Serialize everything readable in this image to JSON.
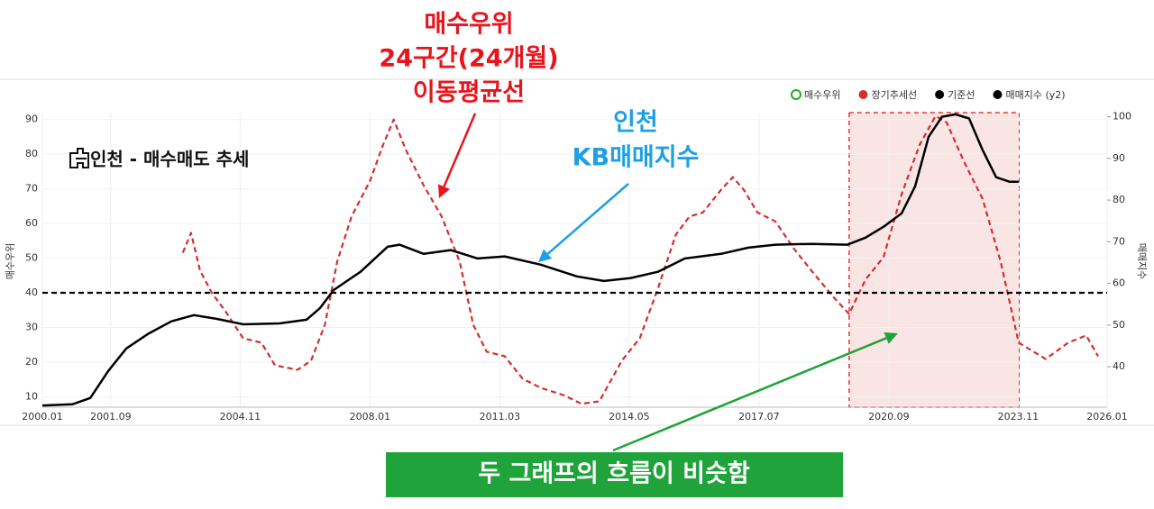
{
  "chart_data": {
    "type": "line",
    "title": "인천 - 매수매도 추세",
    "ylabel": "매수우위",
    "y2label": "매매지수",
    "xlim": [
      2000.0,
      2026.0
    ],
    "xticks": [
      {
        "value": 2000.0,
        "label": "2000.01"
      },
      {
        "value": 2001.67,
        "label": "2001.09"
      },
      {
        "value": 2004.83,
        "label": "2004.11"
      },
      {
        "value": 2008.0,
        "label": "2008.01"
      },
      {
        "value": 2011.17,
        "label": "2011.03"
      },
      {
        "value": 2014.33,
        "label": "2014.05"
      },
      {
        "value": 2017.5,
        "label": "2017.07"
      },
      {
        "value": 2020.67,
        "label": "2020.09"
      },
      {
        "value": 2023.83,
        "label": "2023.11"
      },
      {
        "value": 2026.0,
        "label": "2026.01"
      }
    ],
    "ylim": [
      7,
      92
    ],
    "yticks": [
      10,
      20,
      30,
      40,
      50,
      60,
      70,
      80,
      90
    ],
    "y2lim": [
      30.3,
      101
    ],
    "y2ticks": [
      40,
      50,
      60,
      70,
      80,
      90,
      100
    ],
    "grid": true,
    "legend": "top-right",
    "highlight_range": [
      2019.7,
      2023.85
    ],
    "highlight_color": "#f4c6c6",
    "series": [
      {
        "name": "매수우위",
        "color": "#22aa22",
        "marker": "ring",
        "x": [],
        "values": []
      },
      {
        "name": "장기추세선",
        "color": "#d32f2f",
        "marker": "dot",
        "dash": true,
        "x": [
          2003.43,
          2003.63,
          2003.85,
          2004.14,
          2004.47,
          2004.9,
          2005.35,
          2005.68,
          2006.23,
          2006.56,
          2006.9,
          2007.2,
          2007.55,
          2008.0,
          2008.32,
          2008.58,
          2008.87,
          2009.31,
          2009.75,
          2010.19,
          2010.52,
          2010.85,
          2011.29,
          2011.73,
          2012.17,
          2012.72,
          2013.16,
          2013.6,
          2014.15,
          2014.59,
          2015.03,
          2015.47,
          2015.8,
          2016.13,
          2016.57,
          2016.86,
          2017.13,
          2017.46,
          2017.9,
          2018.34,
          2018.78,
          2019.33,
          2019.7,
          2020.1,
          2020.54,
          2020.98,
          2021.42,
          2021.81,
          2022.08,
          2022.52,
          2022.96,
          2023.4,
          2023.84,
          2024.5,
          2025.05,
          2025.49,
          2025.78
        ],
        "values": [
          51.6,
          57.3,
          46.4,
          39.9,
          34.7,
          26.9,
          25.6,
          19.1,
          17.8,
          20.4,
          30.8,
          49,
          62,
          72.3,
          82.7,
          90,
          81.4,
          71,
          62,
          49,
          30.8,
          23,
          21.7,
          15.2,
          12.6,
          10.5,
          8,
          8.7,
          20.4,
          26.9,
          41.2,
          56.8,
          62,
          63.2,
          69.7,
          73.4,
          69.7,
          63.2,
          60.6,
          52.9,
          46.4,
          38.6,
          33.9,
          43.8,
          50.3,
          68.4,
          82.7,
          91,
          89.2,
          77.5,
          67.1,
          49,
          25.6,
          20.9,
          25.6,
          27.7,
          21.7
        ]
      },
      {
        "name": "기준선",
        "color": "#000000",
        "marker": "dot",
        "dash": true,
        "x": [
          2000.0,
          2026.0
        ],
        "values": [
          40,
          40
        ]
      },
      {
        "name": "매매지수 (y2)",
        "color": "#000000",
        "marker": "dot",
        "axis": "y2",
        "x": [
          2000.0,
          2000.73,
          2001.17,
          2001.61,
          2002.05,
          2002.6,
          2003.15,
          2003.7,
          2004.25,
          2004.91,
          2005.79,
          2006.45,
          2006.78,
          2007.11,
          2007.77,
          2008.43,
          2008.72,
          2009.31,
          2009.97,
          2010.63,
          2011.29,
          2012.17,
          2013.05,
          2013.71,
          2014.37,
          2015.03,
          2015.69,
          2016.57,
          2017.24,
          2017.9,
          2018.78,
          2019.66,
          2020.1,
          2020.54,
          2020.98,
          2021.31,
          2021.64,
          2021.97,
          2022.3,
          2022.63,
          2022.96,
          2023.29,
          2023.62,
          2023.84
        ],
        "values": [
          30.7,
          31,
          32.5,
          39,
          44.4,
          48,
          50.9,
          52.4,
          51.5,
          50.2,
          50.4,
          51.3,
          54.1,
          58.4,
          62.8,
          68.8,
          69.3,
          67.1,
          68,
          66,
          66.5,
          64.5,
          61.7,
          60.6,
          61.3,
          62.8,
          66,
          67.1,
          68.6,
          69.3,
          69.5,
          69.3,
          71,
          73.6,
          76.8,
          83.3,
          95.2,
          100,
          100.6,
          99.6,
          92,
          85.5,
          84.4,
          84.4
        ]
      }
    ],
    "annotations": [
      {
        "lines": [
          "매수우위",
          "24구간(24개월)",
          "이동평균선"
        ],
        "color": "#e8141c"
      },
      {
        "lines": [
          "인천",
          "KB매매지수"
        ],
        "color": "#1ea0e6"
      },
      {
        "lines": [
          "두 그래프의 흐름이 비슷함"
        ],
        "color": "#ffffff",
        "box": "#1fa33a"
      }
    ]
  }
}
